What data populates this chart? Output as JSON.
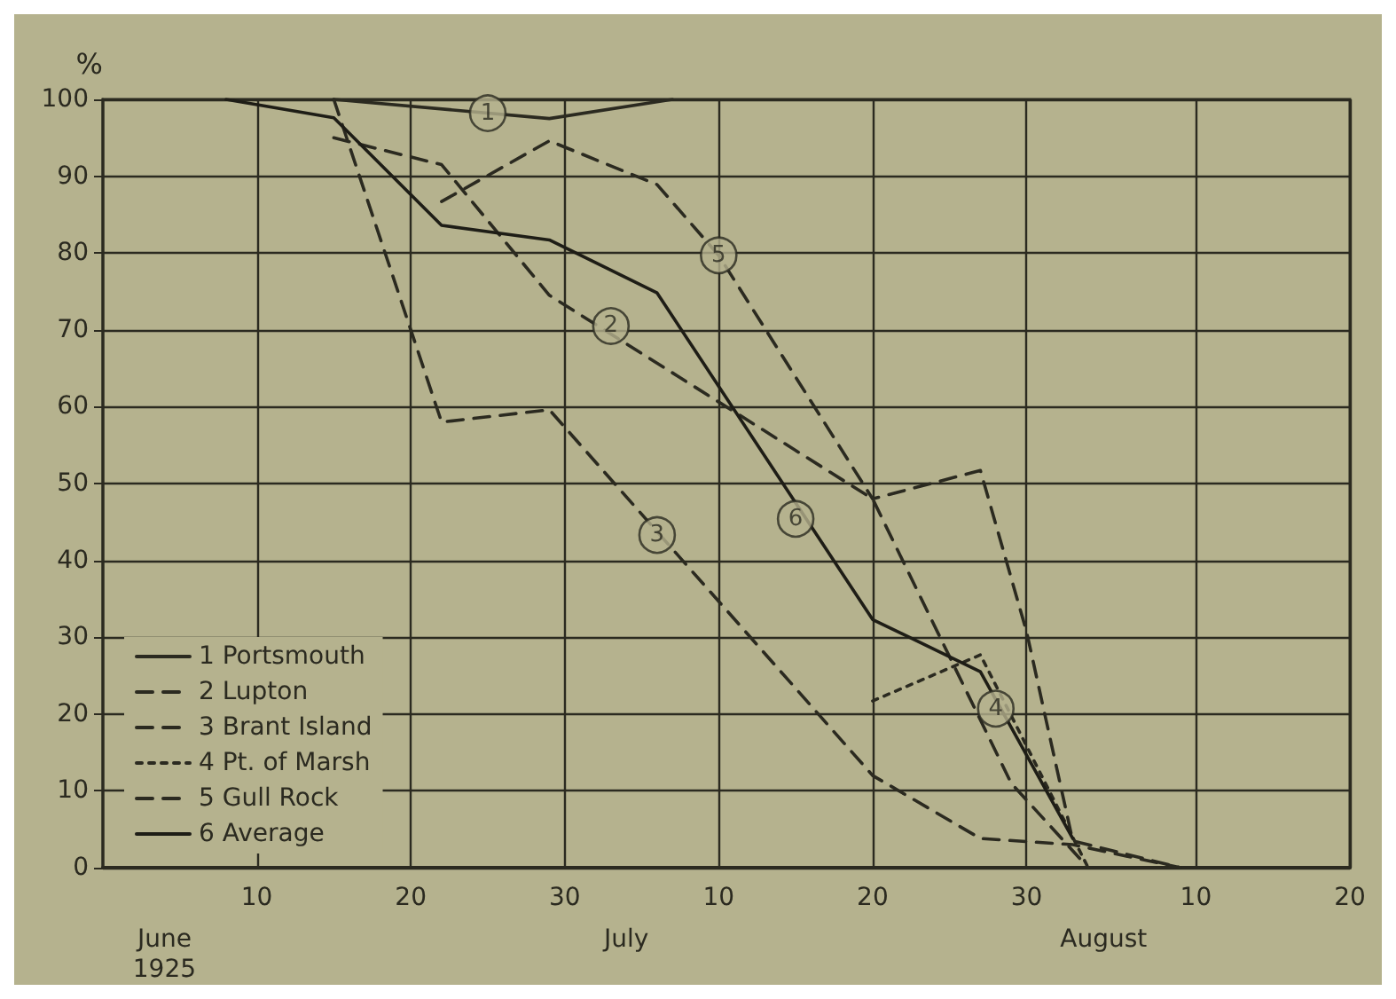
{
  "chart_data": {
    "type": "line",
    "ylabel": "%",
    "xlim": [
      "1925-05-31",
      "1925-08-20"
    ],
    "ylim": [
      0,
      100
    ],
    "xticks": [
      {
        "value": "1925-06-10",
        "label": "10"
      },
      {
        "value": "1925-06-20",
        "label": "20"
      },
      {
        "value": "1925-06-30",
        "label": "30"
      },
      {
        "value": "1925-07-10",
        "label": "10"
      },
      {
        "value": "1925-07-20",
        "label": "20"
      },
      {
        "value": "1925-07-30",
        "label": "30"
      },
      {
        "value": "1925-08-10",
        "label": "10"
      },
      {
        "value": "1925-08-20",
        "label": "20"
      }
    ],
    "yticks": [
      0,
      10,
      20,
      30,
      40,
      50,
      60,
      70,
      80,
      90,
      100
    ],
    "grid": true,
    "marker": "none",
    "legend": "bottom left",
    "series": [
      {
        "name": "1 Portsmouth",
        "color": "#2b2a20",
        "line_style": "solid",
        "x": [
          "1925-06-15",
          "1925-06-29",
          "1925-07-07"
        ],
        "values": [
          100,
          97.5,
          100
        ]
      },
      {
        "name": "2 Lupton",
        "color": "#2b2a20",
        "line_style": "dashed",
        "x": [
          "1925-06-15",
          "1925-06-22",
          "1925-06-29",
          "1925-07-20",
          "1925-07-29",
          "1925-08-03"
        ],
        "values": [
          95,
          91.5,
          74.5,
          48,
          11,
          0
        ]
      },
      {
        "name": "3 Brant Island",
        "color": "#2b2a20",
        "line_style": "dashed",
        "x": [
          "1925-06-15",
          "1925-06-22",
          "1925-06-29",
          "1925-07-20",
          "1925-07-27",
          "1925-08-02",
          "1925-08-09"
        ],
        "values": [
          100,
          58,
          59.6,
          12,
          3.8,
          3,
          0
        ]
      },
      {
        "name": "4 Pt. of Marsh",
        "color": "#2b2a20",
        "line_style": "dotted",
        "x": [
          "1925-07-20",
          "1925-07-27",
          "1925-08-03"
        ],
        "values": [
          21.7,
          27.7,
          0
        ]
      },
      {
        "name": "5 Gull Rock",
        "color": "#2b2a20",
        "line_style": "dashed",
        "x": [
          "1925-06-22",
          "1925-06-29",
          "1925-07-06",
          "1925-07-10",
          "1925-07-20",
          "1925-07-27",
          "1925-07-30",
          "1925-08-02",
          "1925-08-09"
        ],
        "values": [
          86.7,
          94.6,
          88.9,
          79.7,
          48,
          51.7,
          30.7,
          3.5,
          0
        ]
      },
      {
        "name": "6 Average",
        "color": "#1e1d16",
        "line_style": "solid",
        "x": [
          "1925-06-08",
          "1925-06-15",
          "1925-06-22",
          "1925-06-29",
          "1925-07-06",
          "1925-07-20",
          "1925-07-27",
          "1925-08-02"
        ],
        "values": [
          100,
          97.6,
          83.6,
          81.7,
          74.8,
          32.3,
          25.5,
          3.8
        ]
      }
    ],
    "annotations": [
      {
        "text": "1",
        "x": "1925-06-25",
        "y": 98.2
      },
      {
        "text": "2",
        "x": "1925-07-03",
        "y": 70.5
      },
      {
        "text": "3",
        "x": "1925-07-06",
        "y": 43.3
      },
      {
        "text": "4",
        "x": "1925-07-28",
        "y": 20.7
      },
      {
        "text": "5",
        "x": "1925-07-10",
        "y": 79.7
      },
      {
        "text": "6",
        "x": "1925-07-15",
        "y": 45.4
      },
      "June\n1925",
      "July",
      "August"
    ]
  }
}
